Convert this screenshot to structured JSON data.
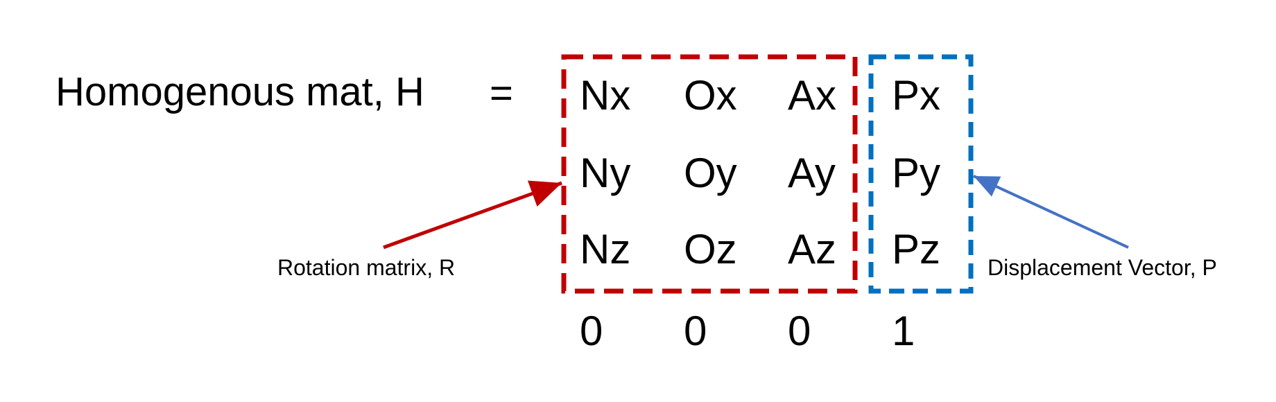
{
  "lhs": "Homogenous mat, H",
  "equals": "=",
  "matrix": {
    "rows": [
      [
        "Nx",
        "Ox",
        "Ax",
        "Px"
      ],
      [
        "Ny",
        "Oy",
        "Ay",
        "Py"
      ],
      [
        "Nz",
        "Oz",
        "Az",
        "Pz"
      ],
      [
        "0",
        "0",
        "0",
        "1"
      ]
    ]
  },
  "labels": {
    "rotation": "Rotation matrix, R",
    "displacement": "Displacement Vector, P"
  },
  "colors": {
    "rotation_box": "#c00000",
    "rotation_arrow": "#c00000",
    "displacement_box": "#0070c0",
    "displacement_arrow": "#4472c4",
    "text": "#000000"
  }
}
